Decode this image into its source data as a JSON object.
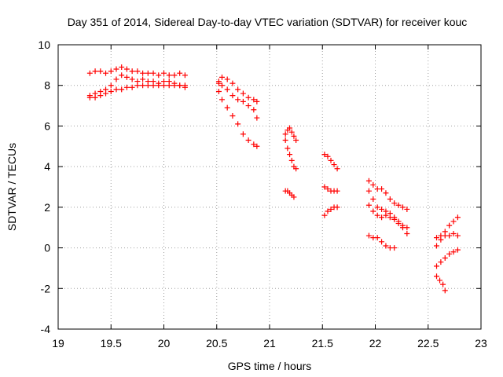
{
  "chart_data": {
    "type": "scatter",
    "title": "Day 351 of 2014, Sidereal Day-to-day VTEC variation (SDTVAR) for receiver kouc",
    "xlabel": "GPS time / hours",
    "ylabel": "SDTVAR / TECUs",
    "xlim": [
      19,
      23
    ],
    "ylim": [
      -4,
      10
    ],
    "xticks": [
      19,
      19.5,
      20,
      20.5,
      21,
      21.5,
      22,
      22.5,
      23
    ],
    "xtick_labels": [
      "19",
      "19.5",
      "20",
      "20.5",
      "21",
      "21.5",
      "22",
      "22.5",
      "23"
    ],
    "yticks": [
      -4,
      -2,
      0,
      2,
      4,
      6,
      8,
      10
    ],
    "ytick_labels": [
      "-4",
      "-2",
      "0",
      "2",
      "4",
      "6",
      "8",
      "10"
    ],
    "grid": true,
    "marker": "+",
    "color": "#ff0000",
    "series": [
      {
        "name": "track-1",
        "x": [
          19.3,
          19.35,
          19.4,
          19.45,
          19.5,
          19.55,
          19.6,
          19.65,
          19.7,
          19.75,
          19.8,
          19.85,
          19.9,
          19.95,
          20.0,
          20.05,
          20.1,
          20.15,
          20.2
        ],
        "y": [
          8.6,
          8.7,
          8.7,
          8.6,
          8.7,
          8.8,
          8.9,
          8.8,
          8.7,
          8.7,
          8.6,
          8.6,
          8.6,
          8.5,
          8.6,
          8.5,
          8.5,
          8.6,
          8.5
        ]
      },
      {
        "name": "track-2",
        "x": [
          19.3,
          19.35,
          19.4,
          19.45,
          19.5,
          19.55,
          19.6,
          19.65,
          19.7,
          19.75,
          19.8,
          19.85,
          19.9,
          19.95,
          20.0,
          20.05,
          20.1,
          20.15,
          20.2
        ],
        "y": [
          7.5,
          7.6,
          7.7,
          7.8,
          8.0,
          8.3,
          8.5,
          8.4,
          8.3,
          8.2,
          8.3,
          8.2,
          8.2,
          8.1,
          8.2,
          8.2,
          8.1,
          8.0,
          8.0
        ]
      },
      {
        "name": "track-3",
        "x": [
          19.3,
          19.35,
          19.4,
          19.45,
          19.5,
          19.55,
          19.6,
          19.65,
          19.7,
          19.75,
          19.8,
          19.85,
          19.9,
          19.95,
          20.0,
          20.05,
          20.1,
          20.15,
          20.2
        ],
        "y": [
          7.4,
          7.4,
          7.5,
          7.6,
          7.7,
          7.8,
          7.8,
          7.9,
          7.9,
          8.0,
          8.0,
          8.0,
          8.0,
          8.0,
          8.0,
          8.0,
          8.0,
          8.0,
          7.9
        ]
      },
      {
        "name": "track-4",
        "x": [
          20.52,
          20.55,
          20.6,
          20.65,
          20.7,
          20.75,
          20.8,
          20.85,
          20.88
        ],
        "y": [
          8.1,
          8.4,
          8.3,
          8.1,
          7.8,
          7.6,
          7.4,
          7.3,
          7.2
        ]
      },
      {
        "name": "track-5",
        "x": [
          20.52,
          20.55,
          20.6,
          20.65,
          20.7,
          20.75,
          20.8,
          20.85,
          20.88
        ],
        "y": [
          8.2,
          8.0,
          7.8,
          7.5,
          7.3,
          7.2,
          7.0,
          6.8,
          6.4
        ]
      },
      {
        "name": "track-6",
        "x": [
          20.52,
          20.55,
          20.6,
          20.65,
          20.7,
          20.75,
          20.8,
          20.85,
          20.88
        ],
        "y": [
          7.7,
          7.3,
          6.9,
          6.5,
          6.1,
          5.6,
          5.3,
          5.1,
          5.0
        ]
      },
      {
        "name": "track-7",
        "x": [
          21.15,
          21.17,
          21.19,
          21.21,
          21.23,
          21.25
        ],
        "y": [
          5.6,
          5.8,
          5.9,
          5.7,
          5.5,
          5.3
        ]
      },
      {
        "name": "track-8",
        "x": [
          21.15,
          21.17,
          21.19,
          21.21,
          21.23,
          21.25
        ],
        "y": [
          5.3,
          4.9,
          4.6,
          4.3,
          4.0,
          3.9
        ]
      },
      {
        "name": "track-9",
        "x": [
          21.15,
          21.17,
          21.19,
          21.21,
          21.23
        ],
        "y": [
          2.8,
          2.8,
          2.7,
          2.6,
          2.5
        ]
      },
      {
        "name": "track-10",
        "x": [
          21.52,
          21.55,
          21.58,
          21.61,
          21.64
        ],
        "y": [
          4.6,
          4.5,
          4.3,
          4.1,
          3.9
        ]
      },
      {
        "name": "track-11",
        "x": [
          21.52,
          21.55,
          21.58,
          21.61,
          21.64
        ],
        "y": [
          3.0,
          2.9,
          2.8,
          2.8,
          2.8
        ]
      },
      {
        "name": "track-12",
        "x": [
          21.52,
          21.55,
          21.58,
          21.61,
          21.64
        ],
        "y": [
          1.6,
          1.8,
          1.9,
          2.0,
          2.0
        ]
      },
      {
        "name": "track-13",
        "x": [
          21.94,
          21.98,
          22.02,
          22.06,
          22.1,
          22.14,
          22.18,
          22.22,
          22.26,
          22.3
        ],
        "y": [
          3.3,
          3.1,
          2.9,
          2.9,
          2.7,
          2.4,
          2.2,
          2.1,
          2.0,
          1.9
        ]
      },
      {
        "name": "track-14",
        "x": [
          21.94,
          21.98,
          22.02,
          22.06,
          22.1,
          22.14,
          22.18,
          22.22,
          22.26,
          22.3
        ],
        "y": [
          2.8,
          2.4,
          2.0,
          1.9,
          1.8,
          1.7,
          1.5,
          1.3,
          1.0,
          0.7
        ]
      },
      {
        "name": "track-15",
        "x": [
          21.94,
          21.98,
          22.02,
          22.06,
          22.1,
          22.14,
          22.18,
          22.22,
          22.26,
          22.3
        ],
        "y": [
          2.1,
          1.8,
          1.6,
          1.5,
          1.6,
          1.5,
          1.4,
          1.2,
          1.1,
          1.0
        ]
      },
      {
        "name": "track-16",
        "x": [
          21.94,
          21.98,
          22.02,
          22.06,
          22.1,
          22.14,
          22.18
        ],
        "y": [
          0.6,
          0.5,
          0.5,
          0.3,
          0.1,
          0.0,
          0.0
        ]
      },
      {
        "name": "track-17",
        "x": [
          22.58,
          22.62,
          22.66,
          22.7,
          22.74,
          22.78
        ],
        "y": [
          0.5,
          0.6,
          0.6,
          0.6,
          0.7,
          0.6
        ]
      },
      {
        "name": "track-18",
        "x": [
          22.58,
          22.62,
          22.66,
          22.7,
          22.74,
          22.78
        ],
        "y": [
          0.1,
          0.4,
          0.8,
          1.1,
          1.3,
          1.5
        ]
      },
      {
        "name": "track-19",
        "x": [
          22.58,
          22.62,
          22.66,
          22.7,
          22.74,
          22.78
        ],
        "y": [
          -0.9,
          -0.7,
          -0.5,
          -0.3,
          -0.2,
          -0.1
        ]
      },
      {
        "name": "track-20",
        "x": [
          22.58,
          22.61,
          22.64,
          22.66
        ],
        "y": [
          -1.4,
          -1.6,
          -1.8,
          -2.1
        ]
      }
    ]
  }
}
